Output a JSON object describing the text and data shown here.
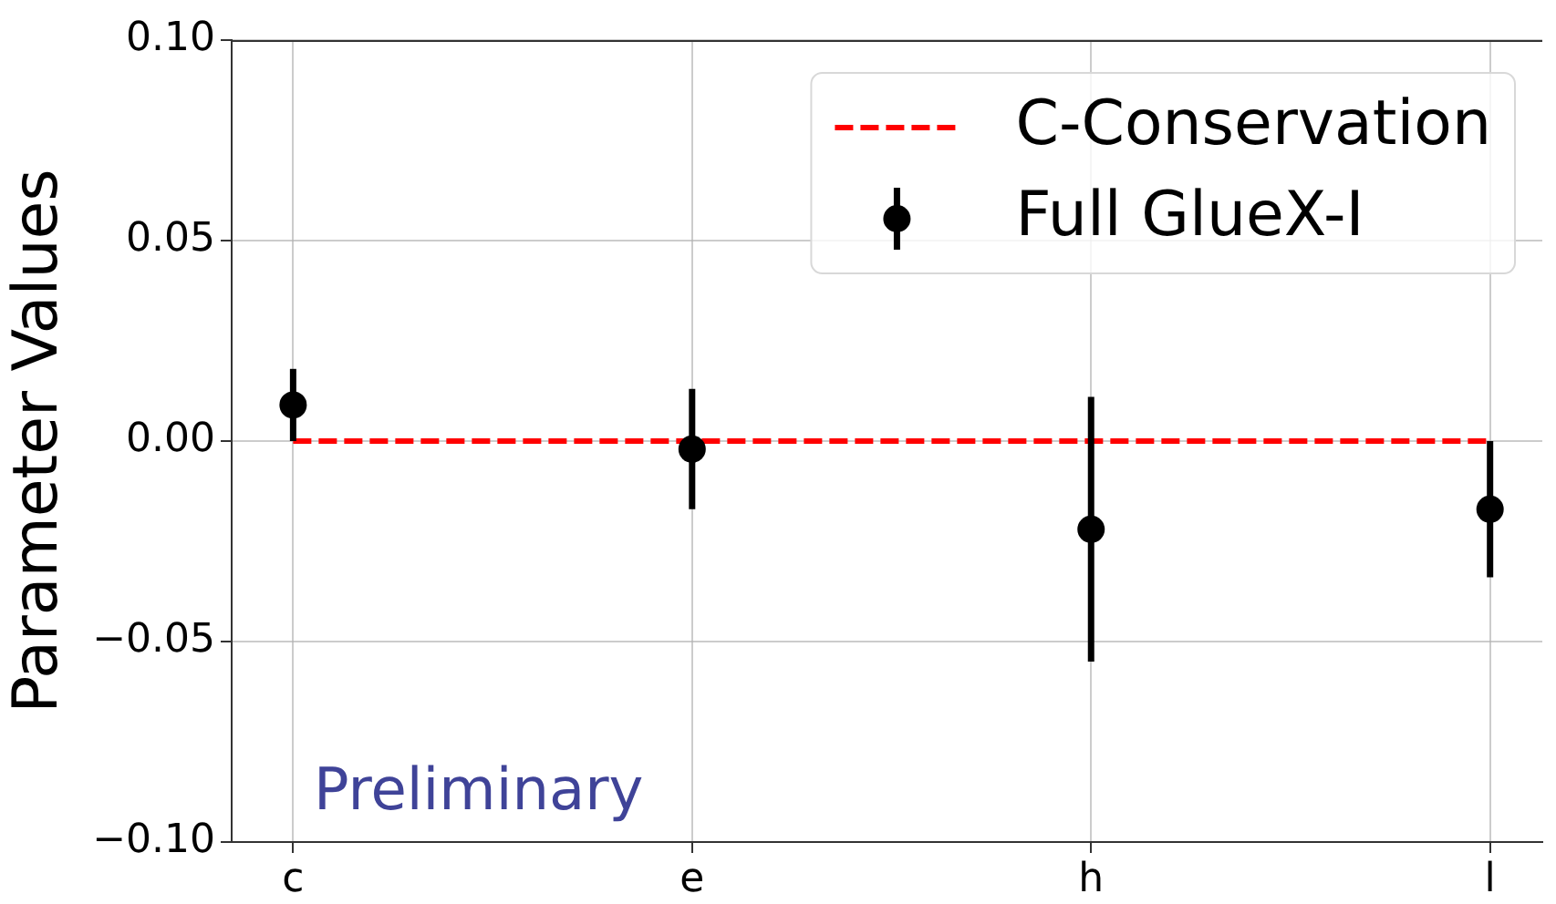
{
  "chart_data": {
    "type": "scatter",
    "categories": [
      "c",
      "e",
      "h",
      "l"
    ],
    "series": [
      {
        "name": "C-Conservation",
        "type": "line",
        "color": "#ff0000",
        "values": [
          0,
          0,
          0,
          0
        ],
        "line_style": "dashed",
        "marker": "none"
      },
      {
        "name": "Full GlueX-I",
        "color": "#000000",
        "values": [
          0.009,
          -0.002,
          -0.022,
          -0.017
        ],
        "errors": [
          0.009,
          0.015,
          0.033,
          0.017
        ],
        "marker": "circle"
      }
    ],
    "ylabel": "Parameter Values",
    "ylim": [
      -0.1,
      0.1
    ],
    "yticks": [
      {
        "value": -0.1,
        "label": "−0.10"
      },
      {
        "value": -0.05,
        "label": "−0.05"
      },
      {
        "value": 0,
        "label": "0.00"
      },
      {
        "value": 0.05,
        "label": "0.05"
      },
      {
        "value": 0.1,
        "label": "0.10"
      }
    ],
    "grid": true,
    "legend": "top right",
    "annotations": [
      "Preliminary"
    ]
  }
}
